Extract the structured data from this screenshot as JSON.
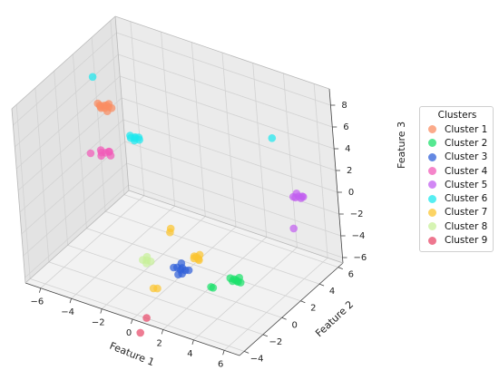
{
  "chart_data": {
    "type": "scatter",
    "projection": "3d",
    "axes": {
      "x": {
        "label": "Feature 1",
        "ticks": [
          -6,
          -4,
          -2,
          0,
          2,
          4,
          6
        ],
        "range": [
          -7,
          7
        ]
      },
      "y": {
        "label": "Feature 2",
        "ticks": [
          -4,
          -2,
          0,
          2,
          4,
          6
        ],
        "range": [
          -4.5,
          6.5
        ]
      },
      "z": {
        "label": "Feature 3",
        "ticks": [
          -6,
          -4,
          -2,
          0,
          2,
          4,
          6,
          8
        ],
        "range": [
          -6.5,
          9.5
        ]
      }
    },
    "grid": true,
    "legend": {
      "title": "Clusters",
      "placement": "right"
    },
    "series": [
      {
        "name": "Cluster 1",
        "color": "#fa8d63",
        "points": [
          [
            -6.2,
            3.5,
            4
          ],
          [
            -6.4,
            3.4,
            4
          ],
          [
            -5.9,
            3.5,
            4
          ],
          [
            -6.1,
            3.6,
            4
          ],
          [
            -6.3,
            3.3,
            4
          ],
          [
            -5.8,
            3.2,
            3.9
          ],
          [
            -6.0,
            3.7,
            4.1
          ],
          [
            -6.2,
            3.2,
            4
          ],
          [
            -6.6,
            3.5,
            4
          ],
          [
            -5.7,
            3.5,
            4
          ],
          [
            -6.1,
            3.4,
            3.9
          ]
        ]
      },
      {
        "name": "Cluster 2",
        "color": "#1ee06c",
        "points": [
          [
            5.6,
            -2.2,
            -2
          ],
          [
            5.8,
            -2.3,
            -2
          ],
          [
            5.4,
            -2.1,
            -2.1
          ],
          [
            5.7,
            -2.0,
            -1.9
          ],
          [
            5.5,
            -2.4,
            -2
          ],
          [
            5.9,
            -2.2,
            -2.1
          ],
          [
            5.6,
            -2.1,
            -2.2
          ],
          [
            5.3,
            -2.3,
            -1.9
          ],
          [
            4.3,
            -2.8,
            -2.8
          ],
          [
            4.5,
            -2.9,
            -2.7
          ]
        ]
      },
      {
        "name": "Cluster 3",
        "color": "#3060d8",
        "points": [
          [
            0.6,
            -0.2,
            -5.0
          ],
          [
            0.3,
            -0.1,
            -5.0
          ],
          [
            0.9,
            -0.2,
            -4.9
          ],
          [
            0.5,
            0.1,
            -5.1
          ],
          [
            0.8,
            -0.4,
            -5.1
          ],
          [
            0.2,
            -0.3,
            -4.9
          ],
          [
            1.0,
            0.0,
            -5.0
          ],
          [
            0.6,
            -0.5,
            -5.2
          ],
          [
            0.4,
            0.2,
            -4.8
          ]
        ]
      },
      {
        "name": "Cluster 4",
        "color": "#f15cb8",
        "points": [
          [
            -5.6,
            2.4,
            0.8
          ],
          [
            -5.8,
            2.3,
            0.8
          ],
          [
            -5.4,
            2.5,
            0.9
          ],
          [
            -5.7,
            2.1,
            0.7
          ],
          [
            -5.5,
            2.6,
            0.8
          ],
          [
            -5.9,
            2.4,
            0.9
          ],
          [
            -5.2,
            2.3,
            0.8
          ],
          [
            -6.4,
            2.1,
            0.6
          ]
        ]
      },
      {
        "name": "Cluster 5",
        "color": "#c25ff0",
        "points": [
          [
            6.0,
            4.1,
            1.0
          ],
          [
            6.2,
            4.0,
            1.0
          ],
          [
            5.8,
            4.2,
            1.1
          ],
          [
            6.1,
            4.3,
            0.9
          ],
          [
            5.9,
            3.9,
            1.0
          ],
          [
            6.3,
            4.1,
            1.1
          ],
          [
            5.7,
            4.0,
            0.9
          ],
          [
            6.1,
            3.2,
            -1.2
          ]
        ]
      },
      {
        "name": "Cluster 6",
        "color": "#1ee8ee",
        "points": [
          [
            -4.3,
            3.5,
            1.9
          ],
          [
            -4.5,
            3.4,
            1.9
          ],
          [
            -4.1,
            3.6,
            2.0
          ],
          [
            -4.4,
            3.7,
            1.8
          ],
          [
            -4.2,
            3.3,
            1.9
          ],
          [
            -4.6,
            3.5,
            2.0
          ],
          [
            -4.0,
            3.5,
            1.9
          ],
          [
            -6.4,
            2.9,
            7.0
          ],
          [
            3.5,
            5.6,
            4.0
          ]
        ]
      },
      {
        "name": "Cluster 7",
        "color": "#fbc531",
        "points": [
          [
            0.9,
            1.0,
            -4.6
          ],
          [
            1.1,
            0.9,
            -4.6
          ],
          [
            0.7,
            1.1,
            -4.7
          ],
          [
            1.0,
            1.2,
            -4.5
          ],
          [
            1.2,
            0.8,
            -4.6
          ],
          [
            0.8,
            0.9,
            -4.7
          ],
          [
            -0.4,
            0.6,
            -2.3
          ],
          [
            -0.6,
            0.8,
            -2.9
          ],
          [
            -1.2,
            -0.4,
            -7.4
          ],
          [
            -1.0,
            -0.3,
            -7.4
          ]
        ]
      },
      {
        "name": "Cluster 8",
        "color": "#c8f09a",
        "points": [
          [
            -1.1,
            -1.0,
            -4.3
          ],
          [
            -1.3,
            -1.1,
            -4.3
          ],
          [
            -0.9,
            -0.9,
            -4.4
          ],
          [
            -1.2,
            -0.8,
            -4.2
          ],
          [
            -1.0,
            -1.2,
            -4.4
          ]
        ]
      },
      {
        "name": "Cluster 9",
        "color": "#e84a6a",
        "points": [
          [
            -1.5,
            -1.6,
            -10.7
          ],
          [
            -1.0,
            -1.6,
            -9.1
          ]
        ]
      }
    ]
  }
}
